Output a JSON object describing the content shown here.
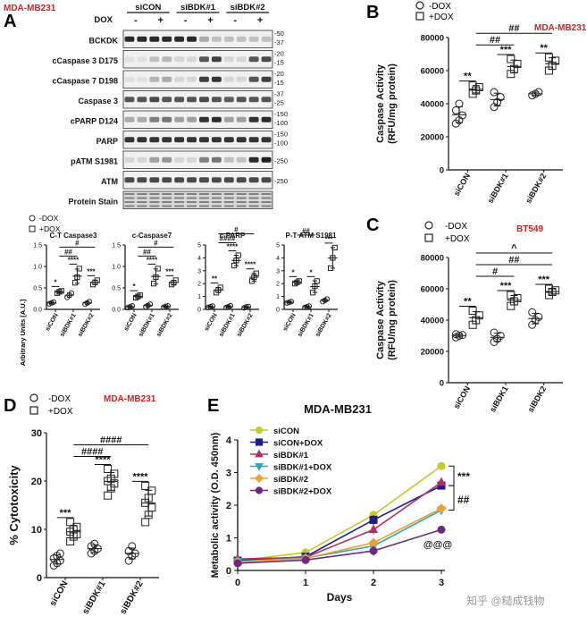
{
  "watermark": "知乎 @糙成钱物",
  "panelA": {
    "letter": "A",
    "cell_line": "MDA-MB231",
    "blot": {
      "group_labels": [
        "siCON",
        "siBDK#1",
        "siBDK#2"
      ],
      "dox_label": "DOX",
      "dox_signs": [
        "-",
        "+",
        "-",
        "+",
        "-",
        "+"
      ],
      "rows": [
        {
          "label": "BCKDK",
          "mw": [
            "-50",
            "-37"
          ]
        },
        {
          "label": "cCaspase 3 D175",
          "mw": [
            "-20",
            "-15"
          ]
        },
        {
          "label": "cCaspase 7 D198",
          "mw": [
            "-20",
            "-15"
          ]
        },
        {
          "label": "Caspase 3",
          "mw": [
            "-37",
            "-25"
          ]
        },
        {
          "label": "cPARP D124",
          "mw": [
            "-150",
            "-100"
          ]
        },
        {
          "label": "PARP",
          "mw": [
            "-150",
            "-100"
          ]
        },
        {
          "label": "pATM S1981",
          "mw": [
            "-250"
          ]
        },
        {
          "label": "ATM",
          "mw": [
            "-250"
          ]
        },
        {
          "label": "Protein Stain",
          "mw": []
        }
      ]
    },
    "legend": [
      "-DOX",
      "+DOX"
    ],
    "ylabel": "Arbitrary Units [A.U.]"
  },
  "panelB": {
    "letter": "B",
    "cell_line": "MDA-MB231",
    "legend": [
      "-DOX",
      "+DOX"
    ]
  },
  "panelC": {
    "letter": "C",
    "cell_line": "BT549",
    "legend": [
      "-DOX",
      "+DOX"
    ]
  },
  "panelD": {
    "letter": "D",
    "cell_line": "MDA-MB231",
    "legend": [
      "-DOX",
      "+DOX"
    ]
  },
  "panelE": {
    "letter": "E"
  },
  "chart_data": [
    {
      "id": "A1",
      "type": "scatter",
      "title": "C-T Caspase3",
      "categories": [
        "siCON",
        "siBDK#1",
        "siBDK#2"
      ],
      "ylim": [
        0,
        1.5
      ],
      "yticks": [
        "0.0",
        "0.5",
        "1.0",
        "1.5"
      ],
      "ylabel": "Arbitrary Units [A.U.]",
      "series": [
        {
          "name": "-DOX",
          "points": [
            [
              0.13,
              0.15,
              0.17
            ],
            [
              0.28,
              0.33,
              0.38
            ],
            [
              0.12,
              0.15,
              0.18
            ]
          ]
        },
        {
          "name": "+DOX",
          "points": [
            [
              0.38,
              0.41,
              0.43
            ],
            [
              0.62,
              0.75,
              0.95
            ],
            [
              0.58,
              0.63,
              0.68
            ]
          ]
        }
      ],
      "annotations": [
        "*",
        "****",
        "***",
        "##",
        "#"
      ]
    },
    {
      "id": "A2",
      "type": "scatter",
      "title": "c-Caspase7",
      "categories": [
        "siCON",
        "siBDK#1",
        "siBDK#2"
      ],
      "ylim": [
        0,
        1.5
      ],
      "yticks": [
        "0.0",
        "0.5",
        "1.0",
        "1.5"
      ],
      "series": [
        {
          "name": "-DOX",
          "points": [
            [
              0.04,
              0.06,
              0.08
            ],
            [
              0.06,
              0.09,
              0.12
            ],
            [
              0.05,
              0.07,
              0.08
            ]
          ]
        },
        {
          "name": "+DOX",
          "points": [
            [
              0.27,
              0.3,
              0.33
            ],
            [
              0.6,
              0.75,
              0.95
            ],
            [
              0.58,
              0.62,
              0.68
            ]
          ]
        }
      ],
      "annotations": [
        "*",
        "****",
        "***",
        "##",
        "#"
      ]
    },
    {
      "id": "A3",
      "type": "scatter",
      "title": "c-PARP",
      "categories": [
        "siCON",
        "siBDK#1",
        "siBDK#2"
      ],
      "ylim": [
        0,
        5
      ],
      "yticks": [
        "0",
        "1",
        "2",
        "3",
        "4",
        "5"
      ],
      "series": [
        {
          "name": "-DOX",
          "points": [
            [
              0.15,
              0.2,
              0.25
            ],
            [
              0.15,
              0.2,
              0.28
            ],
            [
              0.12,
              0.18,
              0.22
            ]
          ]
        },
        {
          "name": "+DOX",
          "points": [
            [
              1.3,
              1.5,
              1.7
            ],
            [
              3.4,
              3.8,
              4.2
            ],
            [
              2.2,
              2.5,
              2.8
            ]
          ]
        }
      ],
      "annotations": [
        "**",
        "****",
        "****",
        "####",
        "#"
      ]
    },
    {
      "id": "A4",
      "type": "scatter",
      "title": "P-T ATM S1981",
      "categories": [
        "siCON",
        "siBDK#1",
        "siBDK#2"
      ],
      "ylim": [
        0,
        5
      ],
      "yticks": [
        "0",
        "1",
        "2",
        "3",
        "4",
        "5"
      ],
      "series": [
        {
          "name": "-DOX",
          "points": [
            [
              0.5,
              0.55,
              0.6
            ],
            [
              0.15,
              0.2,
              0.25
            ],
            [
              0.6,
              0.7,
              0.8
            ]
          ]
        },
        {
          "name": "+DOX",
          "points": [
            [
              2.0,
              2.1,
              2.2
            ],
            [
              1.3,
              1.8,
              2.2
            ],
            [
              3.2,
              4.0,
              4.8
            ]
          ]
        }
      ],
      "annotations": [
        "*",
        "*",
        "***",
        "##"
      ]
    },
    {
      "id": "B",
      "type": "scatter",
      "title": "MDA-MB231",
      "categories": [
        "siCON",
        "siBDK#1",
        "siBDK#2"
      ],
      "ylim": [
        0,
        80000
      ],
      "yticks": [
        "0",
        "20000",
        "40000",
        "60000",
        "80000"
      ],
      "ylabel": "Caspase Activity (RFU/mg protein)",
      "series": [
        {
          "name": "-DOX",
          "points": [
            [
              28000,
              30000,
              33000,
              36000,
              40000
            ],
            [
              38000,
              41000,
              44000,
              47000
            ],
            [
              45000,
              46000,
              47000
            ]
          ]
        },
        {
          "name": "+DOX",
          "points": [
            [
              46000,
              48000,
              50000,
              51000
            ],
            [
              58000,
              61000,
              64000,
              67000
            ],
            [
              60000,
              63000,
              66000,
              68000
            ]
          ]
        }
      ],
      "annotations": [
        "**",
        "***",
        "**",
        "##",
        "##"
      ]
    },
    {
      "id": "C",
      "type": "scatter",
      "title": "BT549",
      "categories": [
        "siCON",
        "siBDK1",
        "siBDK2"
      ],
      "ylim": [
        0,
        80000
      ],
      "yticks": [
        "0",
        "20000",
        "40000",
        "60000",
        "80000"
      ],
      "ylabel": "Caspase Activity (RFU/mg protein)",
      "series": [
        {
          "name": "-DOX",
          "points": [
            [
              29000,
              30000,
              30500,
              31000
            ],
            [
              26000,
              28000,
              30000,
              32000
            ],
            [
              37000,
              40000,
              42000,
              45000
            ]
          ]
        },
        {
          "name": "+DOX",
          "points": [
            [
              37000,
              40000,
              43000,
              46000
            ],
            [
              49000,
              52000,
              54000,
              56000
            ],
            [
              56000,
              58000,
              59000,
              60000
            ]
          ]
        }
      ],
      "annotations": [
        "**",
        "***",
        "***",
        "#",
        "##",
        "^"
      ]
    },
    {
      "id": "D",
      "type": "scatter",
      "title": "MDA-MB231",
      "categories": [
        "siCON",
        "siBDK#1",
        "siBDK#2"
      ],
      "ylim": [
        0,
        30
      ],
      "yticks": [
        "0",
        "10",
        "20",
        "30"
      ],
      "ylabel": "% Cytotoxicity",
      "series": [
        {
          "name": "-DOX",
          "points": [
            [
              2.5,
              3.0,
              3.5,
              4.0,
              4.5,
              5.0
            ],
            [
              5.0,
              5.5,
              6.0,
              6.5,
              7.0
            ],
            [
              3.5,
              4.5,
              5.0,
              5.5,
              6.5
            ]
          ]
        },
        {
          "name": "+DOX",
          "points": [
            [
              7.5,
              8.5,
              9.0,
              9.5,
              10.0,
              10.5,
              11.5
            ],
            [
              17.0,
              18.5,
              19.5,
              20.0,
              20.5,
              21.5,
              22.5
            ],
            [
              11.5,
              13.0,
              14.5,
              15.5,
              16.5,
              18.0,
              19.0
            ]
          ]
        }
      ],
      "annotations": [
        "***",
        "****",
        "****",
        "####",
        "####"
      ]
    },
    {
      "id": "E",
      "type": "line",
      "title": "MDA-MB231",
      "x": [
        0,
        1,
        2,
        3
      ],
      "xlabel": "Days",
      "ylabel": "Metabolic activity (O.D. 450nm)",
      "xlim": [
        0,
        3
      ],
      "ylim": [
        0,
        4
      ],
      "xticks": [
        "0",
        "1",
        "2",
        "3"
      ],
      "yticks": [
        "0",
        "1",
        "2",
        "3",
        "4"
      ],
      "series": [
        {
          "name": "siCON",
          "color": "#c7c92c",
          "marker": "circle",
          "values": [
            0.3,
            0.55,
            1.7,
            3.2
          ]
        },
        {
          "name": "siCON+DOX",
          "color": "#1d1d8c",
          "marker": "square",
          "values": [
            0.3,
            0.42,
            1.55,
            2.6
          ]
        },
        {
          "name": "siBDK#1",
          "color": "#b0306a",
          "marker": "triangle-up",
          "values": [
            0.35,
            0.4,
            1.25,
            2.7
          ]
        },
        {
          "name": "siBDK#1+DOX",
          "color": "#2aa7b8",
          "marker": "triangle-down",
          "values": [
            0.28,
            0.38,
            0.75,
            1.85
          ]
        },
        {
          "name": "siBDK#2",
          "color": "#f0a030",
          "marker": "diamond",
          "values": [
            0.27,
            0.37,
            0.85,
            1.9
          ]
        },
        {
          "name": "siBDK#2+DOX",
          "color": "#6b2a7e",
          "marker": "circle",
          "values": [
            0.22,
            0.32,
            0.6,
            1.25
          ]
        }
      ],
      "annotations": [
        "***",
        "##",
        "@@@"
      ]
    }
  ]
}
